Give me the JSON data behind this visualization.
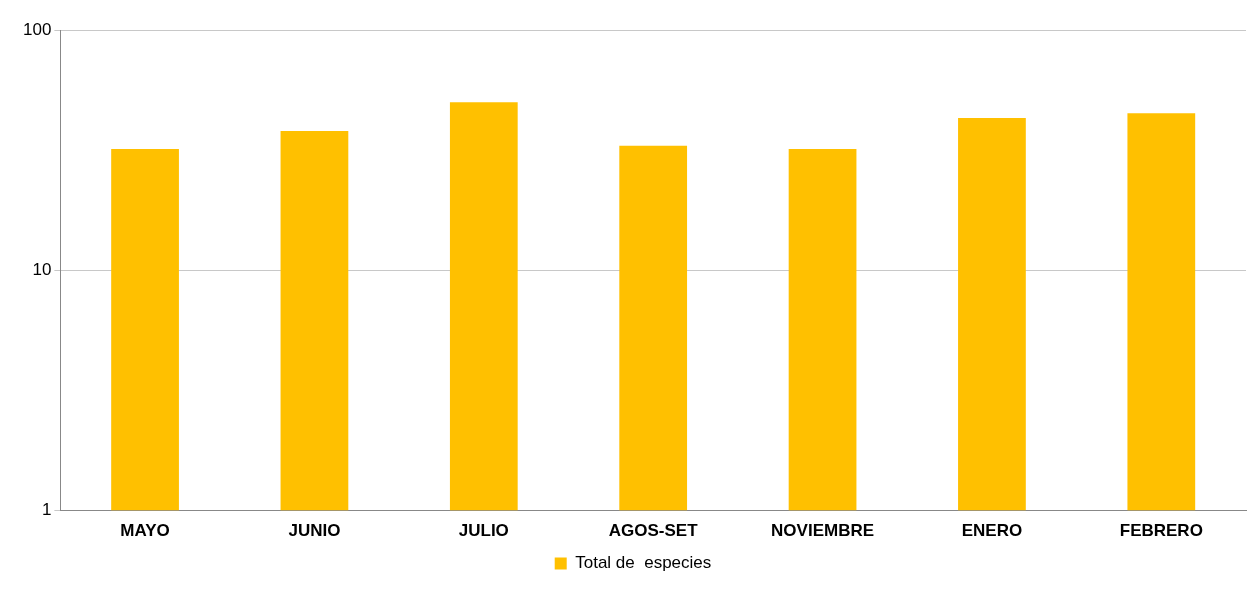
{
  "chart_data": {
    "type": "bar",
    "categories": [
      "MAYO",
      "JUNIO",
      "JULIO",
      "AGOS-SET",
      "NOVIEMBRE",
      "ENERO",
      "FEBRERO"
    ],
    "series": [
      {
        "name": "Total de  especies",
        "color": "#ffc000",
        "values": [
          32,
          38,
          50,
          33,
          32,
          43,
          45
        ]
      }
    ],
    "log": true,
    "ylim": [
      1,
      100
    ],
    "yticks": [
      1,
      10,
      100
    ],
    "grid": "y",
    "legend": "bottom"
  }
}
